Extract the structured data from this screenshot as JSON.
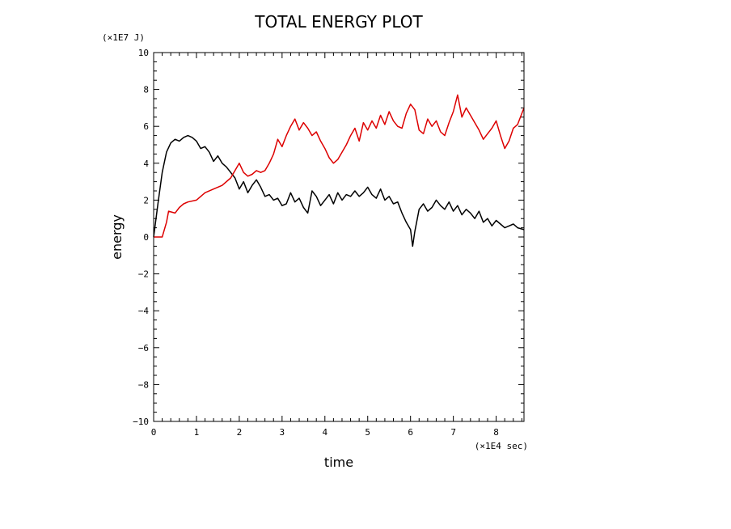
{
  "chart_data": {
    "type": "line",
    "title": "TOTAL ENERGY PLOT",
    "xlabel": "time",
    "ylabel": "energy",
    "x_unit": "(×1E4 sec)",
    "y_unit": "(×1E7 J)",
    "xlim": [
      0,
      8.65
    ],
    "ylim": [
      -10,
      10
    ],
    "x_ticks": [
      "0",
      "1",
      "2",
      "3",
      "4",
      "5",
      "6",
      "7",
      "8"
    ],
    "y_ticks": [
      "10",
      "8",
      "6",
      "4",
      "2",
      "0",
      "−2",
      "−4",
      "−6",
      "−8",
      "−10"
    ],
    "grid": false,
    "series": [
      {
        "name": "black",
        "color": "#000000",
        "x": [
          0,
          0.1,
          0.2,
          0.3,
          0.4,
          0.5,
          0.6,
          0.7,
          0.8,
          0.9,
          1.0,
          1.1,
          1.2,
          1.3,
          1.4,
          1.5,
          1.6,
          1.7,
          1.8,
          1.9,
          2.0,
          2.1,
          2.2,
          2.3,
          2.4,
          2.5,
          2.6,
          2.7,
          2.8,
          2.9,
          3.0,
          3.1,
          3.2,
          3.3,
          3.4,
          3.5,
          3.6,
          3.7,
          3.8,
          3.9,
          4.0,
          4.1,
          4.2,
          4.3,
          4.4,
          4.5,
          4.6,
          4.7,
          4.8,
          4.9,
          5.0,
          5.1,
          5.2,
          5.3,
          5.4,
          5.5,
          5.6,
          5.7,
          5.8,
          5.9,
          6.0,
          6.05,
          6.1,
          6.2,
          6.3,
          6.4,
          6.5,
          6.6,
          6.7,
          6.8,
          6.9,
          7.0,
          7.1,
          7.2,
          7.3,
          7.4,
          7.5,
          7.6,
          7.7,
          7.8,
          7.9,
          8.0,
          8.1,
          8.2,
          8.3,
          8.4,
          8.5,
          8.65
        ],
        "values": [
          0.0,
          1.8,
          3.5,
          4.6,
          5.1,
          5.3,
          5.2,
          5.4,
          5.5,
          5.4,
          5.2,
          4.8,
          4.9,
          4.6,
          4.1,
          4.4,
          4.0,
          3.8,
          3.5,
          3.2,
          2.6,
          3.0,
          2.4,
          2.8,
          3.1,
          2.7,
          2.2,
          2.3,
          2.0,
          2.1,
          1.7,
          1.8,
          2.4,
          1.9,
          2.1,
          1.6,
          1.3,
          2.5,
          2.2,
          1.7,
          2.0,
          2.3,
          1.8,
          2.4,
          2.0,
          2.3,
          2.2,
          2.5,
          2.2,
          2.4,
          2.7,
          2.3,
          2.1,
          2.6,
          2.0,
          2.2,
          1.8,
          1.9,
          1.3,
          0.8,
          0.4,
          -0.5,
          0.3,
          1.5,
          1.8,
          1.4,
          1.6,
          2.0,
          1.7,
          1.5,
          1.9,
          1.4,
          1.7,
          1.2,
          1.5,
          1.3,
          1.0,
          1.4,
          0.8,
          1.0,
          0.6,
          0.9,
          0.7,
          0.5,
          0.6,
          0.7,
          0.5,
          0.4
        ]
      },
      {
        "name": "red",
        "color": "#dd0000",
        "x": [
          0,
          0.2,
          0.3,
          0.35,
          0.5,
          0.6,
          0.7,
          0.8,
          1.0,
          1.2,
          1.4,
          1.6,
          1.8,
          1.9,
          2.0,
          2.1,
          2.2,
          2.3,
          2.4,
          2.5,
          2.6,
          2.7,
          2.8,
          2.9,
          3.0,
          3.1,
          3.2,
          3.3,
          3.4,
          3.5,
          3.6,
          3.7,
          3.8,
          3.9,
          4.0,
          4.1,
          4.2,
          4.3,
          4.4,
          4.5,
          4.6,
          4.7,
          4.8,
          4.9,
          5.0,
          5.1,
          5.2,
          5.3,
          5.4,
          5.5,
          5.6,
          5.7,
          5.8,
          5.9,
          6.0,
          6.1,
          6.2,
          6.3,
          6.4,
          6.5,
          6.6,
          6.7,
          6.8,
          6.9,
          7.0,
          7.1,
          7.2,
          7.3,
          7.4,
          7.5,
          7.6,
          7.7,
          7.8,
          7.9,
          8.0,
          8.1,
          8.2,
          8.3,
          8.4,
          8.5,
          8.65
        ],
        "values": [
          0.0,
          0.0,
          0.8,
          1.4,
          1.3,
          1.6,
          1.8,
          1.9,
          2.0,
          2.4,
          2.6,
          2.8,
          3.2,
          3.6,
          4.0,
          3.5,
          3.3,
          3.4,
          3.6,
          3.5,
          3.6,
          4.0,
          4.5,
          5.3,
          4.9,
          5.5,
          6.0,
          6.4,
          5.8,
          6.2,
          5.9,
          5.5,
          5.7,
          5.2,
          4.8,
          4.3,
          4.0,
          4.2,
          4.6,
          5.0,
          5.5,
          5.9,
          5.2,
          6.2,
          5.8,
          6.3,
          5.9,
          6.6,
          6.1,
          6.8,
          6.3,
          6.0,
          5.9,
          6.7,
          7.2,
          6.9,
          5.8,
          5.6,
          6.4,
          6.0,
          6.3,
          5.7,
          5.5,
          6.2,
          6.8,
          7.7,
          6.5,
          7.0,
          6.6,
          6.2,
          5.8,
          5.3,
          5.6,
          5.9,
          6.3,
          5.5,
          4.8,
          5.2,
          5.9,
          6.1,
          7.0
        ]
      }
    ]
  }
}
